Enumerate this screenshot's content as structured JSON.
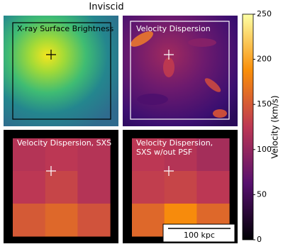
{
  "chart_data": {
    "type": "heatmap",
    "title": "Inviscid",
    "panels": [
      {
        "title": [
          "X-ray Surface Brightness"
        ]
      },
      {
        "title": [
          "Velocity Dispersion"
        ]
      },
      {
        "title": [
          "Velocity Dispersion, SXS"
        ],
        "values": [
          [
            120,
            125,
            120
          ],
          [
            125,
            135,
            120
          ],
          [
            150,
            160,
            145
          ]
        ]
      },
      {
        "title": [
          "Velocity Dispersion,",
          "SXS w/out PSF"
        ],
        "values": [
          [
            125,
            120,
            110
          ],
          [
            130,
            135,
            125
          ],
          [
            160,
            185,
            160
          ]
        ]
      }
    ],
    "colorbar": {
      "label": "Velocity (km/s)",
      "ylim": [
        0,
        250
      ],
      "yticks": [
        0,
        50,
        100,
        150,
        200,
        250
      ]
    },
    "scale_bar": "100 kpc"
  }
}
